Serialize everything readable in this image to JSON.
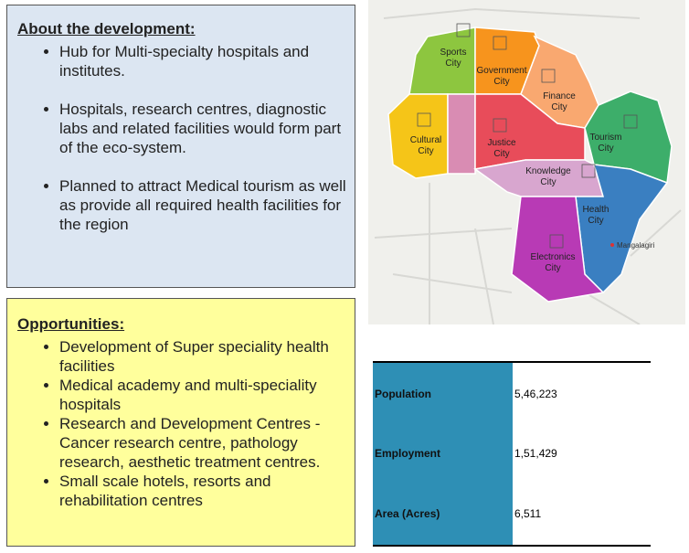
{
  "about": {
    "title": "About the development:",
    "bullets": [
      "Hub for Multi-specialty hospitals and institutes.",
      "Hospitals, research centres, diagnostic labs and related facilities would form part of the eco-system.",
      "Planned to attract Medical tourism as well as provide all required health facilities for the region"
    ]
  },
  "opportunities": {
    "title": "Opportunities:",
    "bullets": [
      "Development of Super speciality health facilities",
      "Medical academy and multi-speciality hospitals",
      "Research and Development Centres - Cancer research centre, pathology research, aesthetic treatment centres.",
      "Small scale hotels, resorts and rehabilitation centres"
    ]
  },
  "map": {
    "zones": [
      [
        "Sports",
        "City"
      ],
      [
        "Government",
        "City"
      ],
      [
        "Finance",
        "City"
      ],
      [
        "Cultural",
        "City"
      ],
      [
        "Justice",
        "City"
      ],
      [
        "Tourism",
        "City"
      ],
      [
        "Knowledge",
        "City"
      ],
      [
        "Health",
        "City"
      ],
      [
        "Electronics",
        "City"
      ]
    ],
    "place": "Mangalagiri"
  },
  "table": {
    "rows": [
      [
        "Population",
        "5,46,223"
      ],
      [
        "Employment",
        "1,51,429"
      ],
      [
        "Area (Acres)",
        "6,511"
      ]
    ]
  }
}
